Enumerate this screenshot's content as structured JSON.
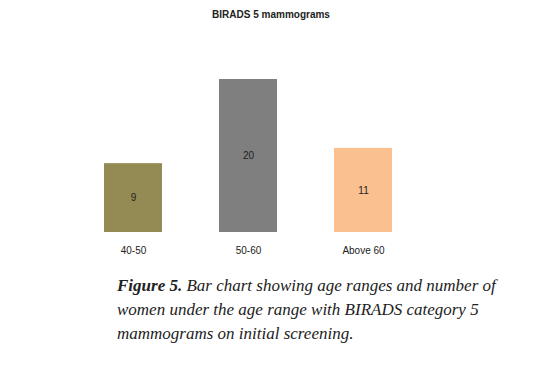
{
  "chart_data": {
    "type": "bar",
    "title": "BIRADS 5 mammograms",
    "caption_label": "Figure 5.",
    "caption": "Bar chart showing age ranges and number of women under the age range with BIRADS category 5 mammograms on initial screening.",
    "categories": [
      "40-50",
      "50-60",
      "Above 60"
    ],
    "values": [
      9,
      20,
      11
    ],
    "colors": [
      "#948a54",
      "#7f7f7f",
      "#fac090"
    ],
    "ylim": [
      0,
      20
    ],
    "yticks": [],
    "grid": false,
    "data_labels": true,
    "tick_labels": "x"
  }
}
